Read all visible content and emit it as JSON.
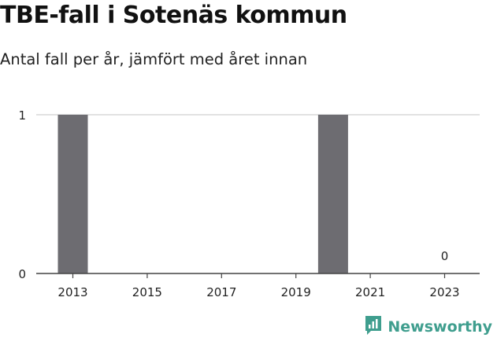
{
  "title": "TBE-fall i Sotenäs kommun",
  "subtitle": "Antal fall per år, jämfört med året innan",
  "logo": {
    "text": "Newsworthy",
    "icon": "newsworthy-logo-icon",
    "color": "#3f9e8e"
  },
  "colors": {
    "bar": "#6d6c71",
    "grid": "#d9d9d9",
    "axis": "#444444",
    "text": "#222222"
  },
  "chart_data": {
    "type": "bar",
    "categories": [
      "2013",
      "2014",
      "2015",
      "2016",
      "2017",
      "2018",
      "2019",
      "2020",
      "2021",
      "2022",
      "2023"
    ],
    "x_tick_labels": [
      "2013",
      "2015",
      "2017",
      "2019",
      "2021",
      "2023"
    ],
    "values": [
      1,
      0,
      0,
      0,
      0,
      0,
      0,
      1,
      0,
      0,
      0
    ],
    "data_labels": [
      {
        "category": "2023",
        "text": "0"
      }
    ],
    "y_ticks": [
      "0",
      "1"
    ],
    "ylim": [
      0,
      1
    ],
    "grid": true,
    "xlabel": "",
    "ylabel": ""
  }
}
